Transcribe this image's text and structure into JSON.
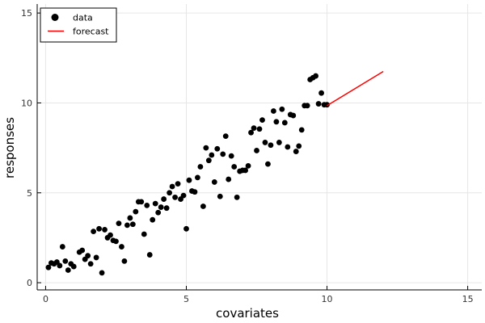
{
  "chart_data": {
    "type": "scatter",
    "xlabel": "covariates",
    "ylabel": "responses",
    "xlim": [
      -0.3,
      15.5
    ],
    "ylim": [
      -0.4,
      15.5
    ],
    "xticks": [
      0,
      5,
      10,
      15
    ],
    "yticks": [
      0,
      5,
      10,
      15
    ],
    "grid": true,
    "legend": {
      "position": "top-left"
    },
    "colors": {
      "data": "#000000",
      "forecast": "#ff0000"
    },
    "series": [
      {
        "name": "data",
        "type": "scatter",
        "x": [
          0.1,
          0.2,
          0.3,
          0.4,
          0.5,
          0.6,
          0.7,
          0.8,
          0.9,
          1.0,
          1.2,
          1.3,
          1.4,
          1.5,
          1.6,
          1.7,
          1.8,
          1.9,
          2.0,
          2.1,
          2.2,
          2.3,
          2.4,
          2.5,
          2.6,
          2.7,
          2.8,
          2.9,
          3.0,
          3.1,
          3.2,
          3.3,
          3.4,
          3.5,
          3.6,
          3.7,
          3.8,
          3.9,
          4.0,
          4.1,
          4.2,
          4.3,
          4.4,
          4.5,
          4.6,
          4.7,
          4.8,
          4.9,
          5.0,
          5.1,
          5.2,
          5.3,
          5.4,
          5.5,
          5.6,
          5.7,
          5.8,
          5.9,
          6.0,
          6.1,
          6.2,
          6.3,
          6.4,
          6.5,
          6.6,
          6.7,
          6.8,
          6.9,
          7.0,
          7.1,
          7.2,
          7.3,
          7.4,
          7.5,
          7.6,
          7.7,
          7.8,
          7.9,
          8.0,
          8.1,
          8.2,
          8.3,
          8.4,
          8.5,
          8.6,
          8.7,
          8.8,
          8.9,
          9.0,
          9.1,
          9.2,
          9.3,
          9.4,
          9.5,
          9.6,
          9.7,
          9.8,
          9.9,
          10.0
        ],
        "y": [
          0.85,
          1.1,
          1.05,
          1.15,
          0.95,
          2.0,
          1.2,
          0.7,
          1.05,
          0.9,
          1.7,
          1.8,
          1.3,
          1.5,
          1.05,
          2.85,
          1.4,
          3.0,
          0.55,
          2.95,
          2.5,
          2.65,
          2.35,
          2.3,
          3.3,
          2.0,
          1.2,
          3.2,
          3.6,
          3.25,
          3.95,
          4.5,
          4.5,
          2.7,
          4.3,
          1.55,
          3.5,
          4.4,
          3.9,
          4.2,
          4.65,
          4.15,
          5.0,
          5.35,
          4.75,
          5.5,
          4.65,
          4.85,
          3.0,
          5.7,
          5.1,
          5.05,
          5.85,
          6.45,
          4.25,
          7.5,
          6.8,
          7.1,
          5.6,
          7.45,
          4.8,
          7.15,
          8.15,
          5.75,
          7.05,
          6.45,
          4.75,
          6.2,
          6.25,
          6.25,
          6.5,
          8.35,
          8.6,
          7.35,
          8.55,
          9.05,
          7.8,
          6.6,
          7.65,
          9.55,
          8.95,
          7.8,
          9.65,
          8.9,
          7.55,
          9.35,
          9.3,
          7.3,
          7.6,
          8.5,
          9.85,
          9.85,
          11.3,
          11.4,
          11.5,
          9.95,
          10.55,
          9.9,
          9.9
        ]
      },
      {
        "name": "forecast",
        "type": "line",
        "x": [
          10,
          12
        ],
        "y": [
          9.85,
          11.75
        ]
      }
    ]
  }
}
